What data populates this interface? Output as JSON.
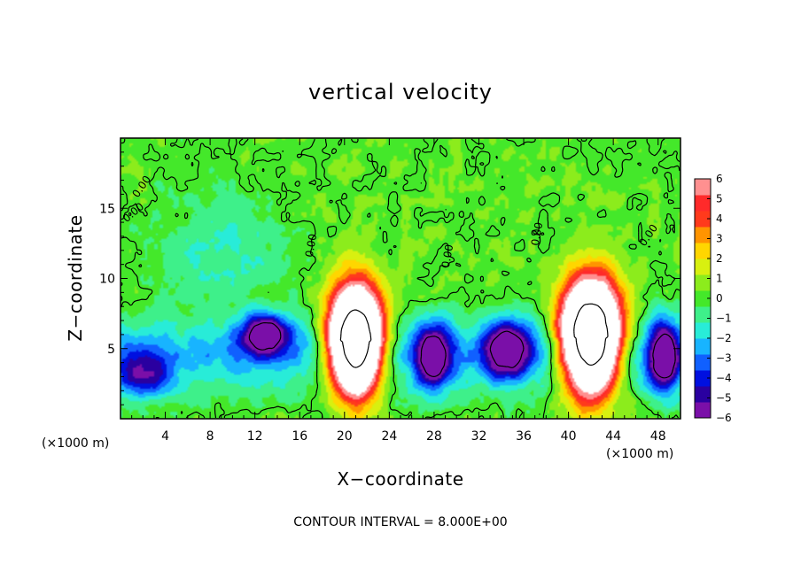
{
  "chart_data": {
    "type": "heatmap",
    "title": "vertical velocity",
    "xlabel": "X−coordinate",
    "ylabel": "Z−coordinate",
    "x_unit_left": "(×1000 m)",
    "x_unit_right": "(×1000 m)",
    "footer": "CONTOUR INTERVAL = 8.000E+00",
    "xlim": [
      0,
      50
    ],
    "ylim": [
      0,
      20
    ],
    "x_ticks": [
      4,
      8,
      12,
      16,
      20,
      24,
      28,
      32,
      36,
      40,
      44,
      48
    ],
    "y_ticks": [
      5,
      10,
      15
    ],
    "colorbar": {
      "min": -6,
      "max": 6,
      "ticks": [
        "6",
        "5",
        "4",
        "3",
        "2",
        "1",
        "0",
        "−1",
        "−2",
        "−3",
        "−4",
        "−5",
        "−6"
      ],
      "colors": [
        "#7a0fa8",
        "#2a00a0",
        "#0010e0",
        "#1060ff",
        "#18b4ff",
        "#28ecd8",
        "#3ef08a",
        "#44e82a",
        "#8cec1c",
        "#d8f010",
        "#ffd600",
        "#ff9400",
        "#ff3a1c",
        "#ff2a2a",
        "#ff9090"
      ],
      "color_names": [
        "purple",
        "dark-blue",
        "blue",
        "mid-blue",
        "light-blue",
        "cyan",
        "aqua-green",
        "green",
        "yellow-green",
        "yellow",
        "orange",
        "dark-orange",
        "red",
        "red",
        "pink"
      ]
    },
    "contour_labels": [
      "0.00",
      "0.00",
      "0.00",
      "0.00",
      "0.00",
      "0.00"
    ],
    "updrafts": [
      {
        "x": 21.0,
        "z": 5.5,
        "sx": 2.2,
        "sz": 3.4,
        "w": 24
      },
      {
        "x": 42.0,
        "z": 5.8,
        "sx": 2.4,
        "sz": 3.6,
        "w": 24
      }
    ],
    "downdrafts": [
      {
        "x": 13.0,
        "z": 6.0,
        "sx": 2.2,
        "sz": 1.4,
        "w": -7
      },
      {
        "x": 28.0,
        "z": 4.5,
        "sx": 1.5,
        "sz": 2.2,
        "w": -7
      },
      {
        "x": 34.5,
        "z": 5.0,
        "sx": 2.0,
        "sz": 2.0,
        "w": -7
      },
      {
        "x": 48.5,
        "z": 4.5,
        "sx": 1.4,
        "sz": 2.4,
        "w": -7
      },
      {
        "x": 2.0,
        "z": 3.0,
        "sx": 2.4,
        "sz": 1.6,
        "w": -4
      }
    ]
  }
}
